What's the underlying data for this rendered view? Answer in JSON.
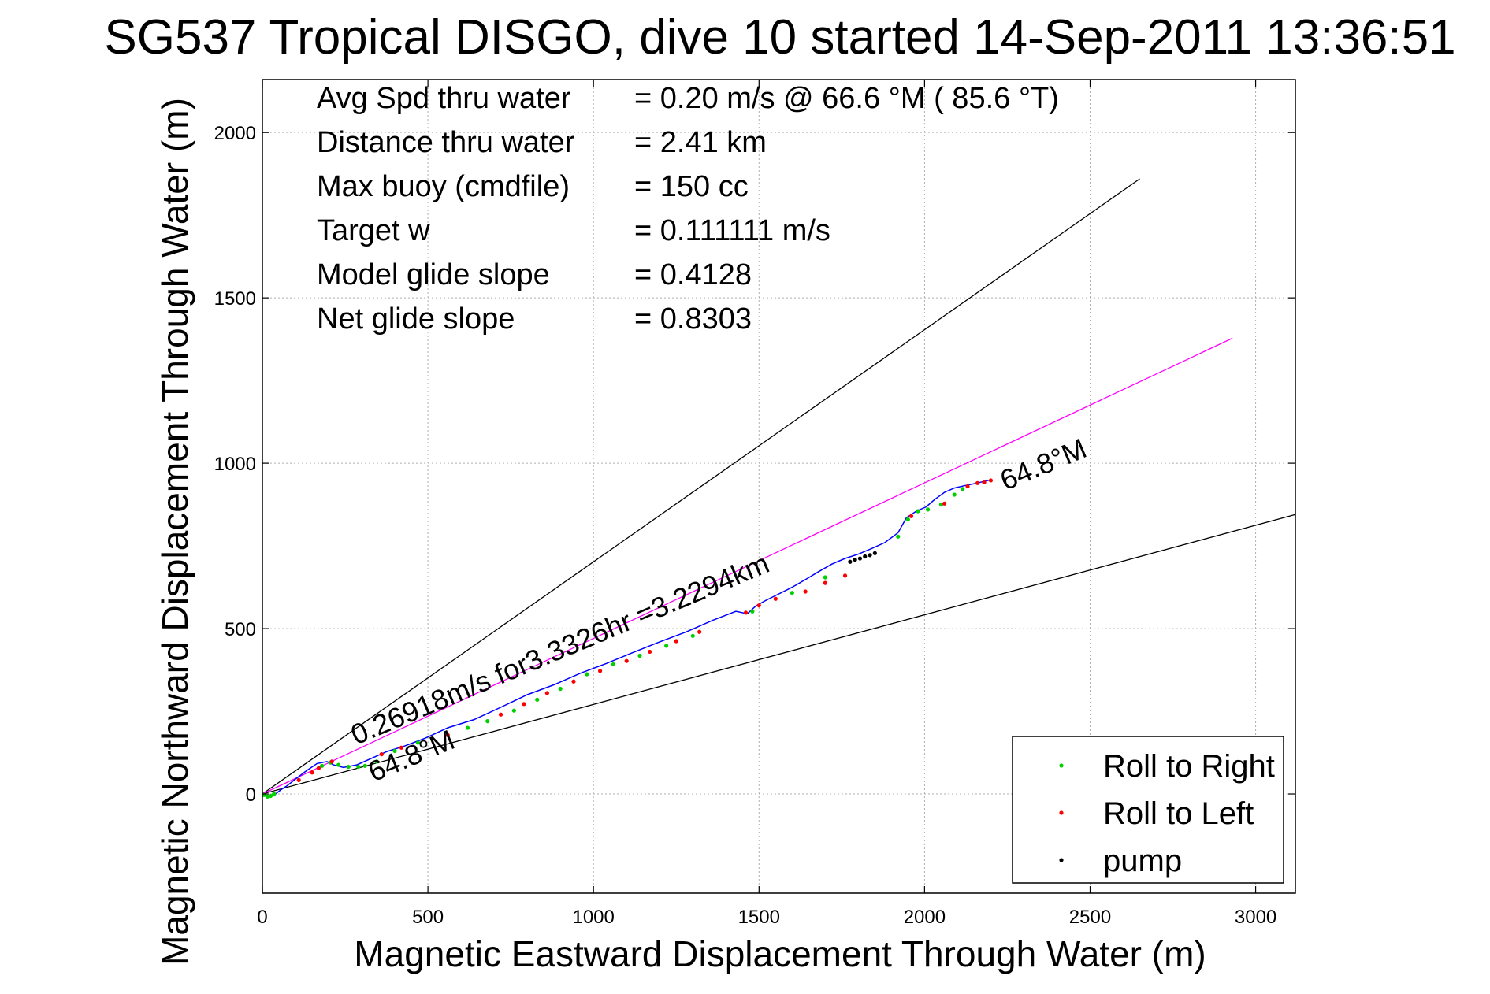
{
  "chart_data": {
    "type": "line",
    "title": "SG537 Tropical DISGO, dive 10 started 14-Sep-2011 13:36:51",
    "xlabel": "Magnetic Eastward Displacement Through Water (m)",
    "ylabel": "Magnetic Northward Displacement Through Water (m)",
    "xlim": [
      0,
      3120
    ],
    "ylim": [
      -300,
      2160
    ],
    "x_ticks": [
      0,
      500,
      1000,
      1500,
      2000,
      2500,
      3000
    ],
    "y_ticks": [
      0,
      500,
      1000,
      1500,
      2000
    ],
    "x_tick_labels": [
      "0",
      "500",
      "1000",
      "1500",
      "2000",
      "2500",
      "3000"
    ],
    "y_tick_labels": [
      "0",
      "500",
      "1000",
      "1500",
      "2000"
    ],
    "grid": true,
    "stats": [
      {
        "label": "Avg Spd thru water",
        "value": "=  0.20 m/s @  66.6 °M ( 85.6 °T)"
      },
      {
        "label": "Distance thru water",
        "value": "=  2.41 km"
      },
      {
        "label": "Max buoy (cmdfile)",
        "value": "= 150 cc"
      },
      {
        "label": "Target w",
        "value": "= 0.111111 m/s"
      },
      {
        "label": "Model glide slope",
        "value": "= 0.4128"
      },
      {
        "label": "Net glide slope",
        "value": "= 0.8303"
      }
    ],
    "annotations": {
      "speed_line": "0.26918m/s for3.3326hr =3.2294km",
      "heading_start": "64.8°M",
      "heading_end": "64.8°M"
    },
    "reference_lines": [
      {
        "x": [
          0,
          2650
        ],
        "y": [
          0,
          1860
        ],
        "color": "#000000"
      },
      {
        "x": [
          0,
          3120
        ],
        "y": [
          0,
          845
        ],
        "color": "#000000"
      },
      {
        "x": [
          0,
          2930
        ],
        "y": [
          0,
          1378
        ],
        "color": "#ff00ff"
      }
    ],
    "track": {
      "color": "#0000ff",
      "x": [
        0,
        10,
        20,
        30,
        40,
        55,
        75,
        100,
        130,
        165,
        195,
        215,
        245,
        285,
        330,
        375,
        430,
        490,
        560,
        640,
        720,
        800,
        880,
        960,
        1040,
        1120,
        1200,
        1280,
        1360,
        1430,
        1465,
        1490,
        1520,
        1560,
        1600,
        1640,
        1680,
        1720,
        1760,
        1800,
        1840,
        1880,
        1920,
        1945,
        1975,
        2005,
        2030,
        2060,
        2090,
        2120,
        2150,
        2180,
        2200
      ],
      "y": [
        0,
        -5,
        -8,
        -5,
        0,
        12,
        25,
        45,
        68,
        92,
        98,
        88,
        80,
        88,
        108,
        128,
        145,
        168,
        200,
        225,
        262,
        300,
        330,
        365,
        395,
        428,
        460,
        490,
        525,
        552,
        545,
        568,
        585,
        605,
        625,
        648,
        672,
        695,
        712,
        725,
        742,
        760,
        790,
        835,
        855,
        868,
        890,
        912,
        925,
        932,
        938,
        945,
        950
      ]
    },
    "series": [
      {
        "name": "Roll to Right",
        "color": "#00d000",
        "x": [
          5,
          15,
          25,
          35,
          180,
          205,
          230,
          260,
          290,
          310,
          345,
          400,
          470,
          620,
          680,
          760,
          830,
          900,
          980,
          1060,
          1140,
          1220,
          1300,
          1480,
          1600,
          1700,
          1920,
          1950,
          1980,
          2010,
          2050,
          2090,
          2115
        ],
        "y": [
          -3,
          -8,
          -6,
          0,
          85,
          95,
          88,
          82,
          82,
          85,
          98,
          130,
          155,
          200,
          220,
          252,
          285,
          318,
          362,
          392,
          418,
          448,
          478,
          552,
          608,
          655,
          778,
          830,
          855,
          860,
          875,
          905,
          922
        ]
      },
      {
        "name": "Roll to Left",
        "color": "#ff0000",
        "x": [
          110,
          150,
          170,
          210,
          360,
          420,
          560,
          720,
          790,
          860,
          940,
          1020,
          1100,
          1170,
          1250,
          1320,
          1460,
          1500,
          1550,
          1640,
          1700,
          1760,
          1960,
          2060,
          2130,
          2160,
          2180,
          2200
        ],
        "y": [
          42,
          65,
          78,
          98,
          120,
          140,
          178,
          240,
          272,
          305,
          340,
          372,
          402,
          430,
          462,
          490,
          548,
          570,
          590,
          612,
          638,
          660,
          840,
          878,
          930,
          940,
          942,
          948
        ]
      },
      {
        "name": "pump",
        "color": "#000000",
        "x": [
          1775,
          1790,
          1805,
          1820,
          1835,
          1850
        ],
        "y": [
          702,
          708,
          712,
          718,
          722,
          728
        ]
      }
    ]
  }
}
